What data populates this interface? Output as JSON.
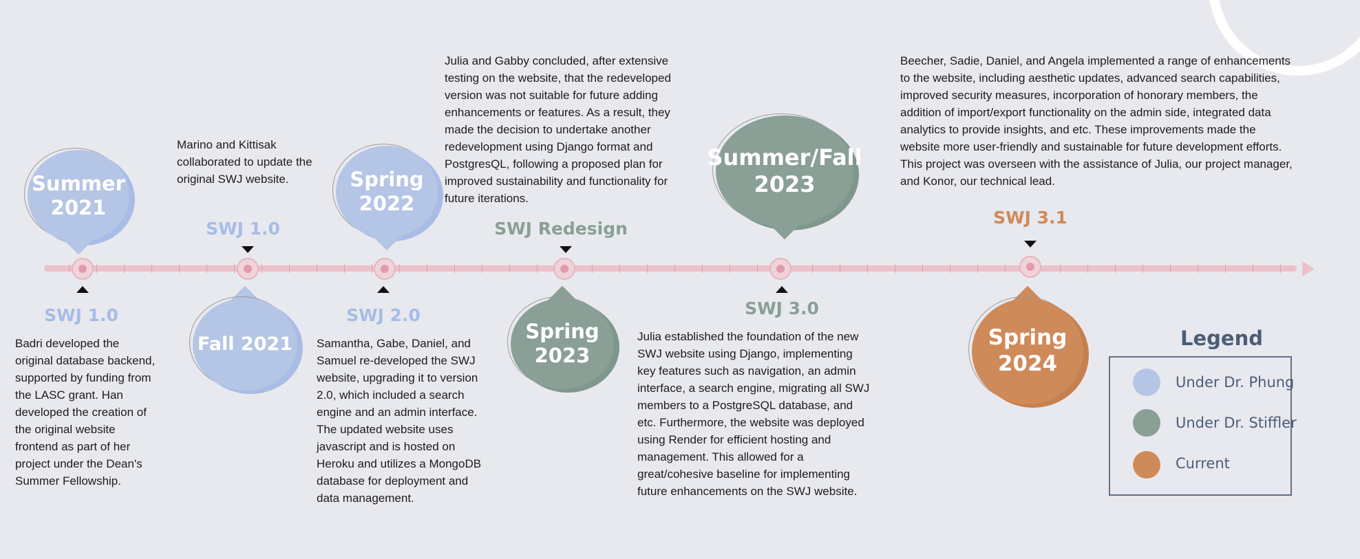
{
  "colors": {
    "background": "#e8e9ee",
    "timeline": "#ecc1c9",
    "node": "#e49aad",
    "under_phung": "#b5c5e6",
    "under_stiffler": "#8a9f95",
    "current": "#cf8a59",
    "legend_border": "#5d6f86"
  },
  "periods": [
    {
      "label": "Summer\n2021",
      "group": "under_phung"
    },
    {
      "label": "Fall 2021",
      "group": "under_phung"
    },
    {
      "label": "Spring\n2022",
      "group": "under_phung"
    },
    {
      "label": "Spring\n2023",
      "group": "under_stiffler"
    },
    {
      "label": "Summer/Fall\n2023",
      "group": "under_stiffler"
    },
    {
      "label": "Spring\n2024",
      "group": "current"
    }
  ],
  "versions": [
    {
      "label": "SWJ 1.0",
      "group": "under_phung"
    },
    {
      "label": "SWJ 1.0",
      "group": "under_phung"
    },
    {
      "label": "SWJ 2.0",
      "group": "under_phung"
    },
    {
      "label": "SWJ Redesign",
      "group": "under_stiffler"
    },
    {
      "label": "SWJ 3.0",
      "group": "under_stiffler"
    },
    {
      "label": "SWJ 3.1",
      "group": "current"
    }
  ],
  "descriptions": [
    "Badri developed the\noriginal database backend,\nsupported by funding from\nthe LASC grant. Han\ndeveloped the creation of\nthe original website\nfrontend as part of her\nproject under the Dean's\nSummer Fellowship.",
    "Marino and Kittisak\ncollaborated to update the\noriginal SWJ website.",
    "Samantha, Gabe, Daniel, and\nSamuel re-developed the SWJ\nwebsite, upgrading it to version\n2.0, which included a search\nengine and an admin interface.\nThe updated website uses\njavascript and is hosted on\nHeroku and utilizes a MongoDB\ndatabase for deployment and\ndata management.",
    "Julia and Gabby concluded, after extensive\ntesting on the website, that the redeveloped\nversion was not suitable for future adding\nenhancements or features. As a result, they\nmade the decision to undertake another\nredevelopment using Django format and\nPostgresQL, following a proposed plan for\nimproved sustainability and functionality for\nfuture iterations.",
    "Julia established the foundation of the new\nSWJ website using Django, implementing\nkey features such as navigation, an admin\ninterface, a search engine, migrating all SWJ\nmembers to a PostgreSQL database, and\netc. Furthermore, the website was deployed\nusing Render for efficient hosting and\nmanagement. This allowed for a\ngreat/cohesive baseline for implementing\nfuture enhancements on the SWJ website.",
    "Beecher, Sadie, Daniel, and Angela implemented a range of enhancements\nto the website, including aesthetic updates, advanced search capabilities,\nimproved security measures, incorporation of honorary members, the\naddition of import/export functionality on the admin side, integrated data\nanalytics to provide insights, and etc. These improvements made the\nwebsite more user-friendly and sustainable for future development efforts.\nThis project was overseen with the assistance of Julia, our project manager,\nand Konor, our technical lead."
  ],
  "legend": {
    "title": "Legend",
    "items": [
      {
        "label": "Under Dr. Phung",
        "color": "#b5c5e6"
      },
      {
        "label": "Under Dr. Stiffler",
        "color": "#8a9f95"
      },
      {
        "label": "Current",
        "color": "#cf8a59"
      }
    ]
  }
}
